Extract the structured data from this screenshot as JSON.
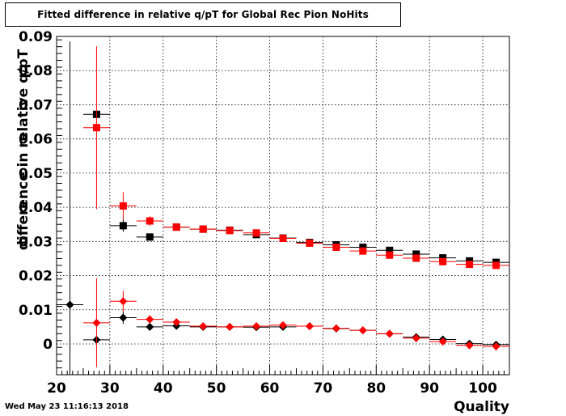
{
  "chart_data": {
    "type": "scatter",
    "title": "Fitted difference in relative q/pT for Global Rec Pion NoHits",
    "xlabel": "Quality",
    "ylabel": "difference in relative q/pT",
    "xlim": [
      20,
      105
    ],
    "ylim": [
      -0.009,
      0.09
    ],
    "x_ticks": [
      20,
      30,
      40,
      50,
      60,
      70,
      80,
      90,
      100
    ],
    "y_ticks": [
      0,
      0.01,
      0.02,
      0.03,
      0.04,
      0.05,
      0.06,
      0.07,
      0.08,
      0.09
    ],
    "grid": true,
    "timestamp": "Wed May 23 11:16:13 2018",
    "series": [
      {
        "color": "#000000",
        "marker": "square",
        "points": [
          {
            "x": 27.5,
            "y": 0.0672,
            "yerr": 0
          },
          {
            "x": 32.5,
            "y": 0.0346,
            "yerr": 0.0018
          },
          {
            "x": 37.5,
            "y": 0.0313,
            "yerr": 0.0007
          },
          {
            "x": 42.5,
            "y": 0.0342,
            "yerr": 0.0004
          },
          {
            "x": 47.5,
            "y": 0.0336,
            "yerr": 0.0003
          },
          {
            "x": 52.5,
            "y": 0.0333,
            "yerr": 0.0003
          },
          {
            "x": 57.5,
            "y": 0.032,
            "yerr": 0.0003
          },
          {
            "x": 62.5,
            "y": 0.031,
            "yerr": 0.0002
          },
          {
            "x": 67.5,
            "y": 0.0297,
            "yerr": 0.0002
          },
          {
            "x": 72.5,
            "y": 0.029,
            "yerr": 0.0002
          },
          {
            "x": 77.5,
            "y": 0.0283,
            "yerr": 0.0002
          },
          {
            "x": 82.5,
            "y": 0.0274,
            "yerr": 0.0002
          },
          {
            "x": 87.5,
            "y": 0.0263,
            "yerr": 0.0002
          },
          {
            "x": 92.5,
            "y": 0.0252,
            "yerr": 0.0002
          },
          {
            "x": 97.5,
            "y": 0.0243,
            "yerr": 0.0002
          },
          {
            "x": 102.5,
            "y": 0.0239,
            "yerr": 0.0002
          }
        ]
      },
      {
        "color": "#ff0000",
        "marker": "square",
        "points": [
          {
            "x": 27.5,
            "y": 0.0633,
            "yerr": 0.0238
          },
          {
            "x": 32.5,
            "y": 0.0404,
            "yerr": 0.004
          },
          {
            "x": 37.5,
            "y": 0.036,
            "yerr": 0.0014
          },
          {
            "x": 42.5,
            "y": 0.0342,
            "yerr": 0.0006
          },
          {
            "x": 47.5,
            "y": 0.0336,
            "yerr": 0.0004
          },
          {
            "x": 52.5,
            "y": 0.0332,
            "yerr": 0.0003
          },
          {
            "x": 57.5,
            "y": 0.0325,
            "yerr": 0.0003
          },
          {
            "x": 62.5,
            "y": 0.0309,
            "yerr": 0.0003
          },
          {
            "x": 67.5,
            "y": 0.0295,
            "yerr": 0.0002
          },
          {
            "x": 72.5,
            "y": 0.0283,
            "yerr": 0.0002
          },
          {
            "x": 77.5,
            "y": 0.0272,
            "yerr": 0.0002
          },
          {
            "x": 82.5,
            "y": 0.026,
            "yerr": 0.0002
          },
          {
            "x": 87.5,
            "y": 0.0251,
            "yerr": 0.0002
          },
          {
            "x": 92.5,
            "y": 0.0241,
            "yerr": 0.0002
          },
          {
            "x": 97.5,
            "y": 0.0233,
            "yerr": 0.0002
          },
          {
            "x": 102.5,
            "y": 0.023,
            "yerr": 0.0002
          }
        ]
      },
      {
        "color": "#000000",
        "marker": "diamond",
        "points": [
          {
            "x": 22.5,
            "y": 0.0115,
            "yerr": 0.077
          },
          {
            "x": 27.5,
            "y": 0.0012,
            "yerr": 0
          },
          {
            "x": 32.5,
            "y": 0.0077,
            "yerr": 0.0018
          },
          {
            "x": 37.5,
            "y": 0.005,
            "yerr": 0.0006
          },
          {
            "x": 42.5,
            "y": 0.0053,
            "yerr": 0.0004
          },
          {
            "x": 47.5,
            "y": 0.005,
            "yerr": 0.0003
          },
          {
            "x": 52.5,
            "y": 0.005,
            "yerr": 0.0003
          },
          {
            "x": 57.5,
            "y": 0.0049,
            "yerr": 0.0002
          },
          {
            "x": 62.5,
            "y": 0.005,
            "yerr": 0.0002
          },
          {
            "x": 67.5,
            "y": 0.0052,
            "yerr": 0.0002
          },
          {
            "x": 72.5,
            "y": 0.0045,
            "yerr": 0.0002
          },
          {
            "x": 77.5,
            "y": 0.004,
            "yerr": 0.0002
          },
          {
            "x": 82.5,
            "y": 0.003,
            "yerr": 0.0002
          },
          {
            "x": 87.5,
            "y": 0.002,
            "yerr": 0.0002
          },
          {
            "x": 92.5,
            "y": 0.0013,
            "yerr": 0.0002
          },
          {
            "x": 97.5,
            "y": 0.0001,
            "yerr": 0.0002
          },
          {
            "x": 102.5,
            "y": -0.0002,
            "yerr": 0.0002
          }
        ]
      },
      {
        "color": "#ff0000",
        "marker": "diamond",
        "points": [
          {
            "x": 27.5,
            "y": 0.0062,
            "yerr": 0.013
          },
          {
            "x": 32.5,
            "y": 0.0125,
            "yerr": 0.003
          },
          {
            "x": 37.5,
            "y": 0.0072,
            "yerr": 0.0012
          },
          {
            "x": 42.5,
            "y": 0.0064,
            "yerr": 0.0006
          },
          {
            "x": 47.5,
            "y": 0.0052,
            "yerr": 0.0004
          },
          {
            "x": 52.5,
            "y": 0.005,
            "yerr": 0.0003
          },
          {
            "x": 57.5,
            "y": 0.0052,
            "yerr": 0.0003
          },
          {
            "x": 62.5,
            "y": 0.0055,
            "yerr": 0.0002
          },
          {
            "x": 67.5,
            "y": 0.0052,
            "yerr": 0.0002
          },
          {
            "x": 72.5,
            "y": 0.0046,
            "yerr": 0.0002
          },
          {
            "x": 77.5,
            "y": 0.004,
            "yerr": 0.0002
          },
          {
            "x": 82.5,
            "y": 0.003,
            "yerr": 0.0002
          },
          {
            "x": 87.5,
            "y": 0.0017,
            "yerr": 0.0002
          },
          {
            "x": 92.5,
            "y": 0.0007,
            "yerr": 0.0002
          },
          {
            "x": 97.5,
            "y": -0.0004,
            "yerr": 0.0002
          },
          {
            "x": 102.5,
            "y": -0.0007,
            "yerr": 0.0002
          }
        ]
      }
    ]
  }
}
